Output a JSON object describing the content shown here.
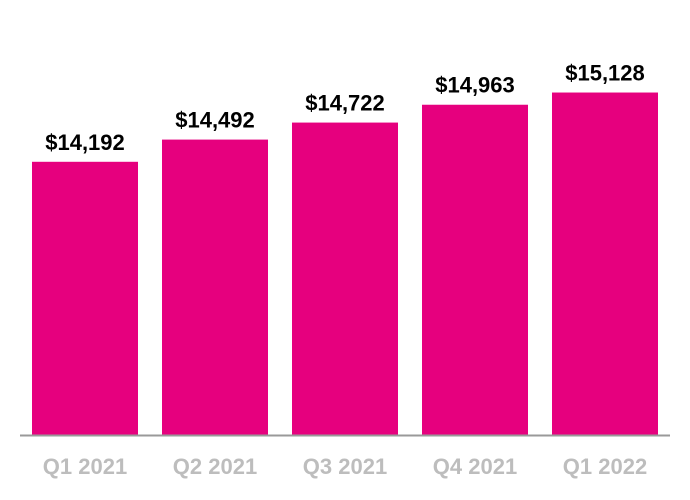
{
  "chart_data": {
    "type": "bar",
    "categories": [
      "Q1 2021",
      "Q2 2021",
      "Q3 2021",
      "Q4 2021",
      "Q1 2022"
    ],
    "values": [
      14192,
      14492,
      14722,
      14963,
      15128
    ],
    "value_labels": [
      "$14,192",
      "$14,492",
      "$14,722",
      "$14,963",
      "$15,128"
    ],
    "title": "",
    "xlabel": "",
    "ylabel": "",
    "ylim": [
      10500,
      15500
    ],
    "grid": false,
    "legend": "none",
    "colors": {
      "bar": "#e6007e",
      "axis": "#999999",
      "tick_label": "#bdbdbd",
      "value_label": "#000000"
    }
  }
}
